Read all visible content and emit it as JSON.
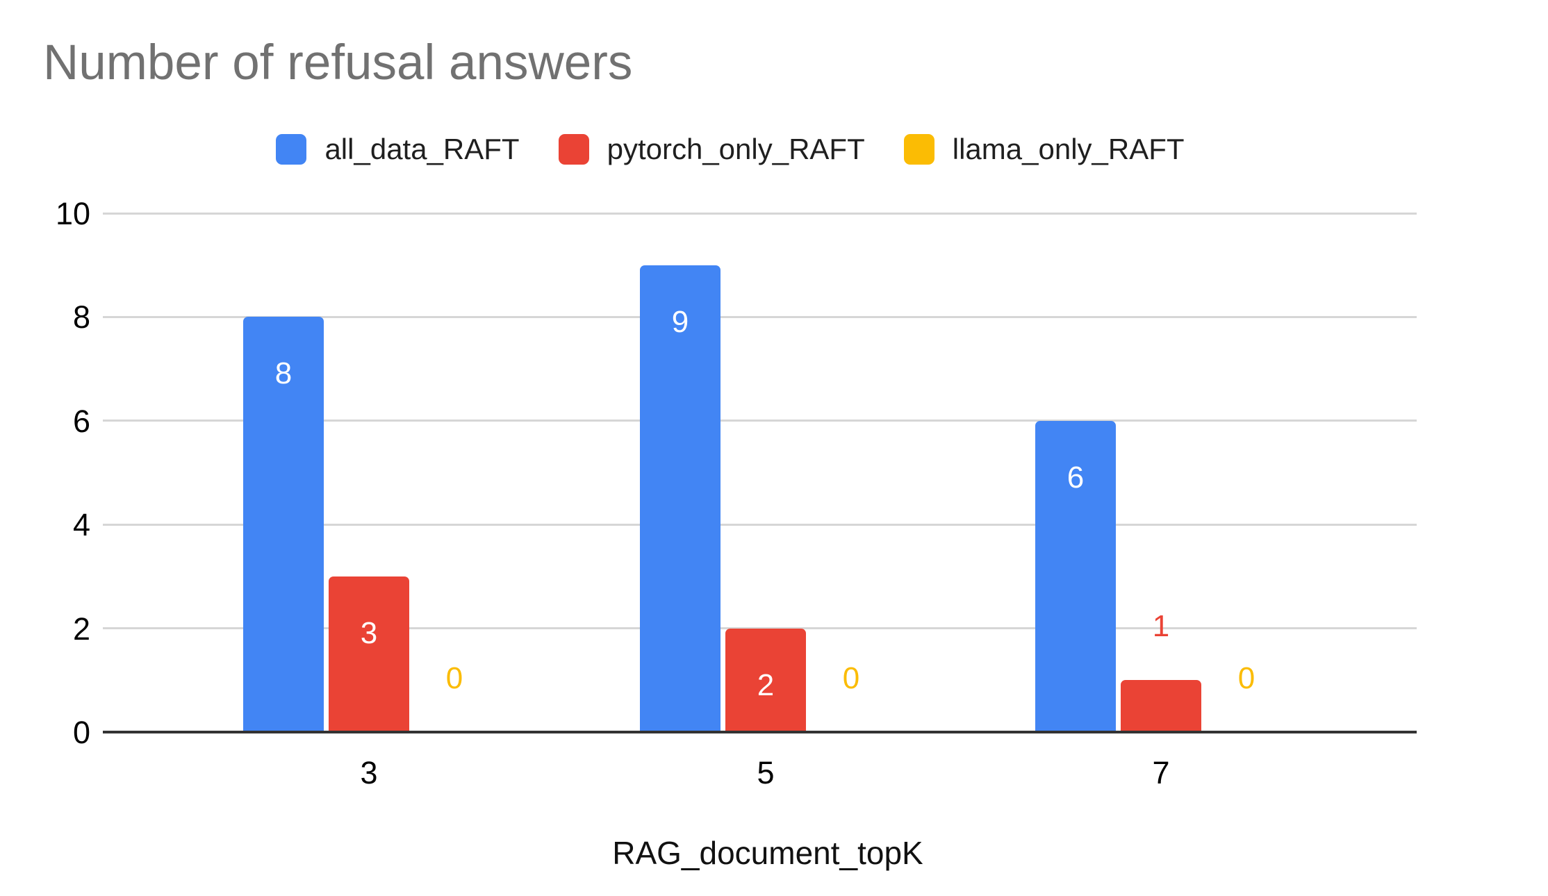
{
  "chart_data": {
    "type": "bar",
    "title": "Number of refusal answers",
    "categories": [
      "3",
      "5",
      "7"
    ],
    "series": [
      {
        "name": "all_data_RAFT",
        "color": "#4285F4",
        "values": [
          8,
          9,
          6
        ]
      },
      {
        "name": "pytorch_only_RAFT",
        "color": "#EA4335",
        "values": [
          3,
          2,
          1
        ]
      },
      {
        "name": "llama_only_RAFT",
        "color": "#FBBC04",
        "values": [
          0,
          0,
          0
        ]
      }
    ],
    "xlabel": "RAG_document_topK",
    "ylabel": "",
    "ylim": [
      0,
      10
    ],
    "yticks": [
      0,
      2,
      4,
      6,
      8,
      10
    ],
    "grid": true,
    "legend_position": "top",
    "data_label_style": "inside-white-when-tall, outside-series-color-when-short",
    "title_color": "#717171",
    "gridline_color": "#d6d6d6",
    "baseline_color": "#333333",
    "background_color": "#ffffff"
  }
}
